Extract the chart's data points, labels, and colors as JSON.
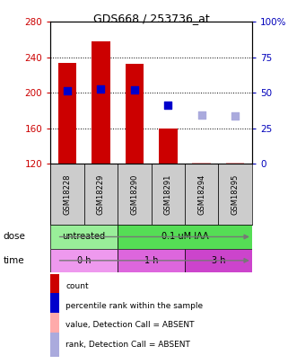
{
  "title": "GDS668 / 253736_at",
  "samples": [
    "GSM18228",
    "GSM18229",
    "GSM18290",
    "GSM18291",
    "GSM18294",
    "GSM18295"
  ],
  "bar_values": [
    234,
    258,
    233,
    160,
    null,
    null
  ],
  "bar_color_present": "#cc0000",
  "bar_color_absent": "#ffaaaa",
  "absent_bar_values": [
    null,
    null,
    null,
    null,
    122,
    122
  ],
  "blue_squares_present": [
    202,
    204,
    203,
    186,
    null,
    null
  ],
  "blue_squares_absent": [
    null,
    null,
    null,
    null,
    175,
    174
  ],
  "blue_square_color": "#0000cc",
  "blue_square_absent_color": "#aaaadd",
  "y_min": 120,
  "y_max": 280,
  "y_ticks": [
    120,
    160,
    200,
    240,
    280
  ],
  "y_right_ticks": [
    0,
    25,
    50,
    75,
    100
  ],
  "y_right_labels": [
    "0",
    "25",
    "50",
    "75",
    "100%"
  ],
  "dose_groups": [
    {
      "label": "untreated",
      "start": 0,
      "end": 2,
      "color": "#99ee99"
    },
    {
      "label": "0.1 uM IAA",
      "start": 2,
      "end": 6,
      "color": "#55dd55"
    }
  ],
  "time_groups": [
    {
      "label": "0 h",
      "start": 0,
      "end": 2,
      "color": "#ee99ee"
    },
    {
      "label": "1 h",
      "start": 2,
      "end": 4,
      "color": "#dd66dd"
    },
    {
      "label": "3 h",
      "start": 4,
      "end": 6,
      "color": "#cc44cc"
    }
  ],
  "sample_box_color": "#cccccc",
  "bg_color": "#ffffff",
  "left_axis_color": "#cc0000",
  "right_axis_color": "#0000bb",
  "legend": [
    {
      "color": "#cc0000",
      "label": "count"
    },
    {
      "color": "#0000cc",
      "label": "percentile rank within the sample"
    },
    {
      "color": "#ffaaaa",
      "label": "value, Detection Call = ABSENT"
    },
    {
      "color": "#aaaadd",
      "label": "rank, Detection Call = ABSENT"
    }
  ]
}
